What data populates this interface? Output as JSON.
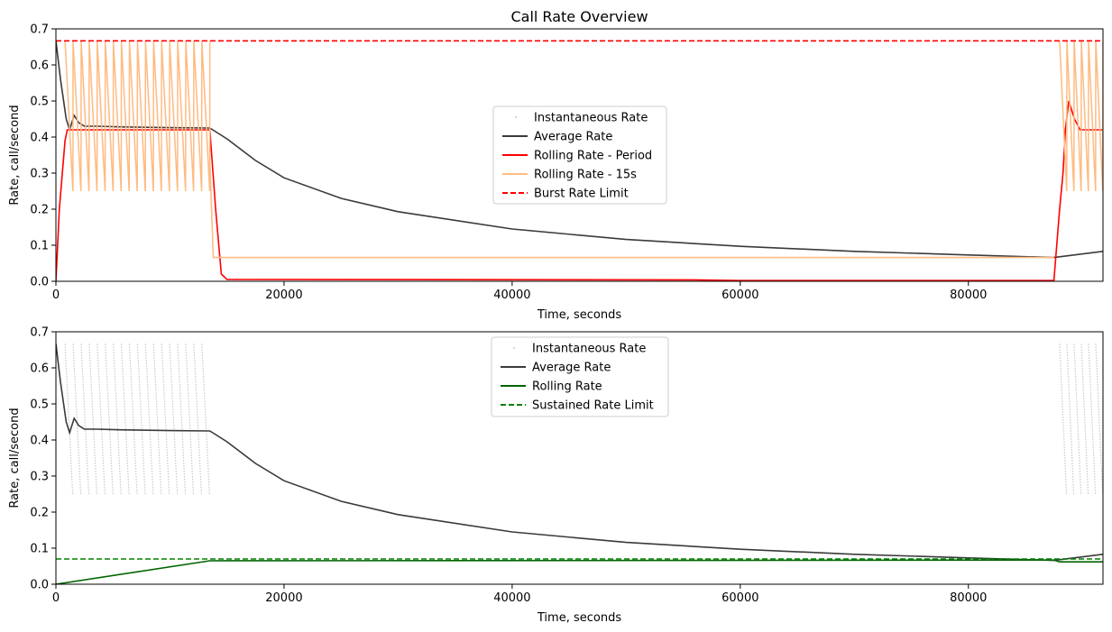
{
  "chart_data": [
    {
      "type": "line",
      "title": "Call Rate Overview",
      "xlabel": "Time, seconds",
      "ylabel": "Rate, call/second",
      "xlim": [
        0,
        91800
      ],
      "ylim": [
        0,
        0.7
      ],
      "xticks": [
        0,
        20000,
        40000,
        60000,
        80000
      ],
      "yticks": [
        0.0,
        0.1,
        0.2,
        0.3,
        0.4,
        0.5,
        0.6,
        0.7
      ],
      "legend_position": "center",
      "grid": false,
      "series": [
        {
          "name": "Instantaneous Rate",
          "style": "scatter",
          "color": "#c8c8c8",
          "bursts": [
            {
              "x_start": 800,
              "x_end": 13500,
              "count": 18,
              "y_high": 0.6667,
              "y_low": 0.25
            },
            {
              "x_start": 88000,
              "x_end": 91800,
              "count": 6,
              "y_high": 0.6667,
              "y_low": 0.25
            }
          ]
        },
        {
          "name": "Average Rate",
          "color": "#3a3a3a",
          "dash": "solid",
          "points": [
            [
              0,
              0.667
            ],
            [
              400,
              0.56
            ],
            [
              900,
              0.45
            ],
            [
              1200,
              0.42
            ],
            [
              1600,
              0.46
            ],
            [
              2000,
              0.44
            ],
            [
              2500,
              0.43
            ],
            [
              3500,
              0.43
            ],
            [
              6000,
              0.428
            ],
            [
              10000,
              0.426
            ],
            [
              13500,
              0.425
            ],
            [
              15000,
              0.395
            ],
            [
              17500,
              0.335
            ],
            [
              20000,
              0.287
            ],
            [
              25000,
              0.23
            ],
            [
              30000,
              0.193
            ],
            [
              40000,
              0.145
            ],
            [
              50000,
              0.116
            ],
            [
              60000,
              0.097
            ],
            [
              70000,
              0.083
            ],
            [
              80000,
              0.073
            ],
            [
              87500,
              0.066
            ],
            [
              88000,
              0.068
            ],
            [
              91800,
              0.083
            ]
          ]
        },
        {
          "name": "Rolling Rate - Period",
          "color": "#ff0000",
          "dash": "solid",
          "points": [
            [
              0,
              0
            ],
            [
              300,
              0.2
            ],
            [
              800,
              0.39
            ],
            [
              1000,
              0.42
            ],
            [
              13500,
              0.42
            ],
            [
              14000,
              0.2
            ],
            [
              14500,
              0.02
            ],
            [
              15000,
              0.005
            ],
            [
              56000,
              0.004
            ],
            [
              60000,
              0.002
            ],
            [
              87500,
              0.002
            ],
            [
              88000,
              0.2
            ],
            [
              88300,
              0.3
            ],
            [
              88500,
              0.42
            ],
            [
              88800,
              0.5
            ],
            [
              89300,
              0.45
            ],
            [
              89800,
              0.42
            ],
            [
              91800,
              0.42
            ]
          ]
        },
        {
          "name": "Rolling Rate - 15s",
          "color": "#ffbb80",
          "dash": "solid",
          "bursts": [
            {
              "x_start": 800,
              "x_end": 13500,
              "count": 18,
              "y_high": 0.6667,
              "y_low": 0.25
            },
            {
              "x_start": 88000,
              "x_end": 91800,
              "count": 6,
              "y_high": 0.6667,
              "y_low": 0.25
            }
          ],
          "points": [
            [
              13500,
              0.33
            ],
            [
              13800,
              0.066
            ],
            [
              87500,
              0.066
            ]
          ]
        },
        {
          "name": "Burst Rate Limit",
          "color": "#ff0000",
          "dash": "dashed",
          "points": [
            [
              0,
              0.6667
            ],
            [
              91800,
              0.6667
            ]
          ]
        }
      ]
    },
    {
      "type": "line",
      "title": "",
      "xlabel": "Time, seconds",
      "ylabel": "Rate, call/second",
      "xlim": [
        0,
        91800
      ],
      "ylim": [
        0,
        0.7
      ],
      "xticks": [
        0,
        20000,
        40000,
        60000,
        80000
      ],
      "yticks": [
        0.0,
        0.1,
        0.2,
        0.3,
        0.4,
        0.5,
        0.6,
        0.7
      ],
      "legend_position": "upper center",
      "grid": false,
      "series": [
        {
          "name": "Instantaneous Rate",
          "style": "scatter",
          "color": "#c8c8c8",
          "bursts": [
            {
              "x_start": 800,
              "x_end": 13500,
              "count": 18,
              "y_high": 0.6667,
              "y_low": 0.25
            },
            {
              "x_start": 88000,
              "x_end": 91800,
              "count": 6,
              "y_high": 0.6667,
              "y_low": 0.25
            }
          ]
        },
        {
          "name": "Average Rate",
          "color": "#3a3a3a",
          "dash": "solid",
          "points": [
            [
              0,
              0.667
            ],
            [
              400,
              0.56
            ],
            [
              900,
              0.45
            ],
            [
              1200,
              0.42
            ],
            [
              1600,
              0.46
            ],
            [
              2000,
              0.44
            ],
            [
              2500,
              0.43
            ],
            [
              3500,
              0.43
            ],
            [
              6000,
              0.428
            ],
            [
              10000,
              0.426
            ],
            [
              13500,
              0.425
            ],
            [
              15000,
              0.395
            ],
            [
              17500,
              0.335
            ],
            [
              20000,
              0.287
            ],
            [
              25000,
              0.23
            ],
            [
              30000,
              0.193
            ],
            [
              40000,
              0.145
            ],
            [
              50000,
              0.116
            ],
            [
              60000,
              0.097
            ],
            [
              70000,
              0.083
            ],
            [
              80000,
              0.073
            ],
            [
              87500,
              0.066
            ],
            [
              88000,
              0.068
            ],
            [
              91800,
              0.083
            ]
          ]
        },
        {
          "name": "Rolling Rate",
          "color": "#006400",
          "dash": "solid",
          "points": [
            [
              0,
              0
            ],
            [
              13500,
              0.065
            ],
            [
              87500,
              0.067
            ],
            [
              88000,
              0.062
            ],
            [
              91800,
              0.062
            ]
          ]
        },
        {
          "name": "Sustained Rate Limit",
          "color": "#008000",
          "dash": "dashed",
          "points": [
            [
              0,
              0.07
            ],
            [
              91800,
              0.07
            ]
          ]
        }
      ]
    }
  ]
}
